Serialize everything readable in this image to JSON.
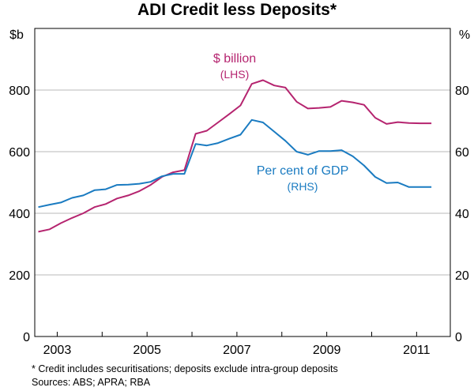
{
  "chart_data": {
    "type": "line",
    "title": "ADI Credit less Deposits*",
    "left_unit": "$b",
    "right_unit": "%",
    "y_left_lim": [
      0,
      1000
    ],
    "y_right_lim": [
      0,
      100
    ],
    "y_left_ticks": [
      "0",
      "200",
      "400",
      "600",
      "800"
    ],
    "y_right_ticks": [
      "0",
      "20",
      "40",
      "60",
      "80"
    ],
    "y_left_tick_values": [
      0,
      200,
      400,
      600,
      800
    ],
    "y_right_tick_values": [
      0,
      20,
      40,
      60,
      80
    ],
    "x_lim": [
      2002.5,
      2011.75
    ],
    "x_tick_labels": [
      "2003",
      "2005",
      "2007",
      "2009",
      "2011"
    ],
    "x_tick_values": [
      2003,
      2005,
      2007,
      2009,
      2011
    ],
    "grid": true,
    "series": [
      {
        "name": "$ billion",
        "sub": "(LHS)",
        "axis": "left",
        "color": "#b5246f",
        "x": [
          2002.58,
          2002.83,
          2003.08,
          2003.33,
          2003.58,
          2003.83,
          2004.08,
          2004.33,
          2004.58,
          2004.83,
          2005.08,
          2005.33,
          2005.58,
          2005.83,
          2006.08,
          2006.33,
          2006.58,
          2006.83,
          2007.08,
          2007.33,
          2007.58,
          2007.83,
          2008.08,
          2008.33,
          2008.58,
          2008.83,
          2009.08,
          2009.33,
          2009.58,
          2009.83,
          2010.08,
          2010.33,
          2010.58,
          2010.83,
          2011.08,
          2011.33
        ],
        "values": [
          340,
          348,
          368,
          385,
          400,
          420,
          430,
          448,
          458,
          472,
          492,
          518,
          533,
          540,
          658,
          668,
          695,
          722,
          750,
          820,
          832,
          815,
          808,
          762,
          740,
          742,
          745,
          765,
          760,
          752,
          710,
          690,
          696,
          693,
          692,
          692
        ]
      },
      {
        "name": "Per cent of GDP",
        "sub": "(RHS)",
        "axis": "right",
        "color": "#1a7bc1",
        "x": [
          2002.58,
          2002.83,
          2003.08,
          2003.33,
          2003.58,
          2003.83,
          2004.08,
          2004.33,
          2004.58,
          2004.83,
          2005.08,
          2005.33,
          2005.58,
          2005.83,
          2006.08,
          2006.33,
          2006.58,
          2006.83,
          2007.08,
          2007.33,
          2007.58,
          2007.83,
          2008.08,
          2008.33,
          2008.58,
          2008.83,
          2009.08,
          2009.33,
          2009.58,
          2009.83,
          2010.08,
          2010.33,
          2010.58,
          2010.83,
          2011.08,
          2011.33
        ],
        "values": [
          42,
          42.8,
          43.5,
          45,
          45.8,
          47.5,
          47.8,
          49.2,
          49.3,
          49.6,
          50.2,
          52,
          52.8,
          52.8,
          62.5,
          62,
          62.8,
          64.2,
          65.5,
          70.3,
          69.5,
          66.5,
          63.5,
          60,
          59,
          60.2,
          60.2,
          60.5,
          58.5,
          55.5,
          51.8,
          49.8,
          50,
          48.5,
          48.5,
          48.5
        ]
      }
    ]
  },
  "notes": {
    "footnote": "*   Credit includes securitisations; deposits exclude intra-group deposits",
    "sources": "Sources: ABS; APRA; RBA"
  }
}
